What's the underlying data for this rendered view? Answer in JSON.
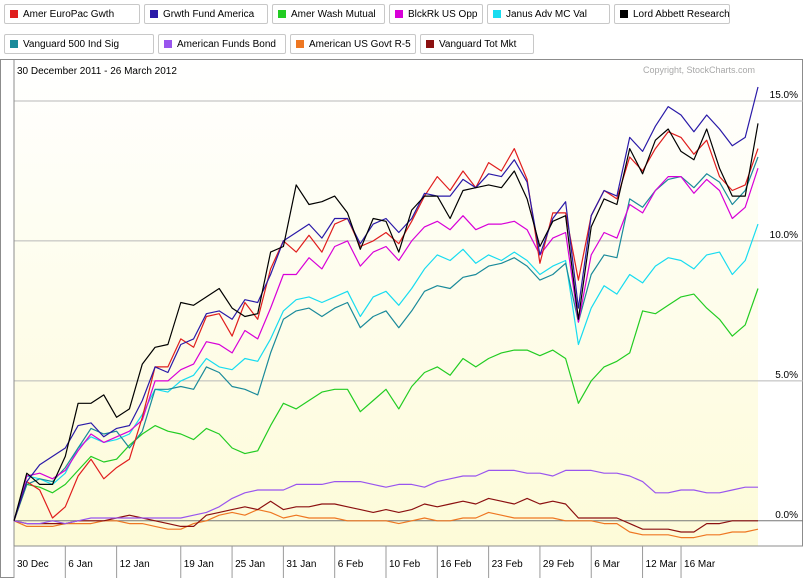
{
  "chart_data": {
    "type": "line",
    "date_range": "30 December 2011 - 26 March 2012",
    "copyright": "Copyright, StockCharts.com",
    "x_tick_labels": [
      "30 Dec",
      "6 Jan",
      "12 Jan",
      "19 Jan",
      "25 Jan",
      "31 Jan",
      "6 Feb",
      "10 Feb",
      "16 Feb",
      "23 Feb",
      "29 Feb",
      "6 Mar",
      "12 Mar",
      "16 Mar"
    ],
    "y_tick_labels": [
      "15.0%",
      "10.0%",
      "5.0%",
      "0.0%"
    ],
    "ylim": [
      -0.9,
      16.5
    ],
    "grid": true,
    "legend_placement": "top",
    "dates": [
      "2011-12-30",
      "2012-01-03",
      "2012-01-04",
      "2012-01-05",
      "2012-01-06",
      "2012-01-09",
      "2012-01-10",
      "2012-01-11",
      "2012-01-12",
      "2012-01-13",
      "2012-01-17",
      "2012-01-18",
      "2012-01-19",
      "2012-01-20",
      "2012-01-23",
      "2012-01-24",
      "2012-01-25",
      "2012-01-26",
      "2012-01-27",
      "2012-01-30",
      "2012-01-31",
      "2012-02-01",
      "2012-02-02",
      "2012-02-03",
      "2012-02-06",
      "2012-02-07",
      "2012-02-08",
      "2012-02-09",
      "2012-02-10",
      "2012-02-13",
      "2012-02-14",
      "2012-02-15",
      "2012-02-16",
      "2012-02-17",
      "2012-02-21",
      "2012-02-22",
      "2012-02-23",
      "2012-02-24",
      "2012-02-27",
      "2012-02-28",
      "2012-02-29",
      "2012-03-01",
      "2012-03-02",
      "2012-03-05",
      "2012-03-06",
      "2012-03-07",
      "2012-03-08",
      "2012-03-09",
      "2012-03-12",
      "2012-03-13",
      "2012-03-14",
      "2012-03-15",
      "2012-03-16",
      "2012-03-19",
      "2012-03-20",
      "2012-03-21",
      "2012-03-22",
      "2012-03-23",
      "2012-03-26"
    ],
    "series": [
      {
        "name": "Amer EuroPac Gwth",
        "color": "#e01e1e",
        "values": [
          0.0,
          1.4,
          1.1,
          0.1,
          0.5,
          1.6,
          2.2,
          1.5,
          1.9,
          2.2,
          3.7,
          5.5,
          5.5,
          6.5,
          6.2,
          7.3,
          7.4,
          6.6,
          7.8,
          7.2,
          9.0,
          10.0,
          9.6,
          10.2,
          9.6,
          10.6,
          10.8,
          9.8,
          10.0,
          10.3,
          9.9,
          10.7,
          11.6,
          12.3,
          11.8,
          12.5,
          11.9,
          12.8,
          12.5,
          13.3,
          12.2,
          9.2,
          11.0,
          11.0,
          8.6,
          10.9,
          11.8,
          11.5,
          13.0,
          12.5,
          13.3,
          13.9,
          13.7,
          13.1,
          13.6,
          12.3,
          11.8,
          12.0,
          13.3
        ]
      },
      {
        "name": "Grwth Fund America",
        "color": "#2a1aa8",
        "values": [
          0.0,
          1.4,
          2.0,
          2.3,
          2.6,
          3.4,
          3.5,
          3.0,
          3.3,
          3.4,
          4.3,
          5.5,
          5.3,
          6.3,
          6.5,
          7.4,
          7.5,
          7.2,
          7.9,
          7.8,
          8.8,
          10.0,
          10.3,
          10.6,
          10.1,
          10.8,
          10.8,
          9.9,
          10.6,
          10.8,
          10.3,
          10.8,
          11.7,
          11.6,
          11.6,
          12.2,
          11.9,
          12.4,
          12.3,
          12.9,
          12.1,
          9.5,
          10.8,
          11.4,
          7.6,
          10.9,
          11.8,
          11.6,
          13.7,
          13.2,
          14.1,
          14.8,
          14.5,
          13.9,
          14.5,
          14.0,
          13.4,
          13.7,
          15.5
        ]
      },
      {
        "name": "Amer Wash Mutual",
        "color": "#22cc22",
        "values": [
          0.0,
          1.3,
          1.2,
          1.0,
          1.3,
          1.8,
          2.3,
          2.1,
          2.2,
          2.7,
          3.1,
          3.4,
          3.2,
          3.1,
          2.9,
          3.3,
          3.1,
          2.6,
          2.4,
          2.5,
          3.4,
          4.2,
          4.0,
          4.3,
          4.6,
          4.7,
          4.7,
          3.9,
          4.3,
          4.7,
          4.0,
          4.8,
          5.3,
          5.5,
          5.2,
          5.8,
          5.5,
          5.8,
          6.0,
          6.1,
          6.1,
          5.9,
          6.1,
          5.8,
          4.2,
          5.0,
          5.5,
          5.7,
          6.0,
          7.5,
          7.4,
          7.7,
          8.0,
          8.1,
          7.6,
          7.2,
          6.6,
          7.0,
          8.3
        ]
      },
      {
        "name": "BlckRk US Opp",
        "color": "#d800d8",
        "values": [
          0.0,
          1.6,
          1.7,
          1.5,
          1.8,
          2.5,
          3.1,
          2.8,
          3.0,
          3.2,
          3.6,
          5.0,
          5.0,
          5.4,
          5.6,
          6.4,
          6.3,
          6.0,
          6.8,
          6.5,
          7.6,
          8.8,
          8.8,
          9.4,
          9.0,
          9.8,
          10.0,
          9.1,
          9.6,
          9.8,
          9.3,
          10.0,
          10.5,
          10.7,
          10.4,
          10.9,
          10.4,
          10.6,
          10.6,
          10.7,
          10.4,
          9.5,
          10.1,
          10.3,
          7.1,
          9.5,
          10.3,
          10.1,
          11.3,
          11.0,
          11.8,
          12.3,
          12.3,
          11.7,
          12.2,
          11.8,
          10.8,
          11.2,
          12.6
        ]
      },
      {
        "name": "Janus Adv MC Val",
        "color": "#18dcf0",
        "values": [
          0.0,
          1.6,
          1.5,
          1.3,
          1.7,
          2.6,
          3.0,
          2.8,
          2.9,
          3.1,
          3.8,
          4.7,
          4.6,
          5.0,
          5.2,
          5.8,
          5.5,
          5.4,
          5.8,
          5.7,
          6.5,
          7.5,
          7.9,
          8.0,
          7.8,
          8.0,
          8.2,
          7.3,
          8.0,
          8.2,
          7.7,
          8.3,
          9.0,
          9.5,
          9.3,
          9.7,
          9.2,
          9.5,
          9.3,
          9.6,
          9.3,
          8.8,
          9.1,
          9.3,
          6.3,
          7.6,
          8.4,
          8.1,
          8.8,
          8.5,
          9.1,
          9.4,
          9.3,
          9.0,
          9.5,
          9.6,
          8.8,
          9.3,
          10.6
        ]
      },
      {
        "name": "Lord Abbett Research",
        "color": "#000000",
        "values": [
          0.0,
          1.7,
          1.3,
          1.3,
          2.3,
          4.2,
          4.2,
          4.5,
          3.7,
          4.0,
          5.6,
          6.2,
          6.3,
          7.8,
          7.7,
          8.0,
          8.3,
          7.6,
          7.3,
          7.4,
          9.6,
          9.8,
          12.0,
          11.3,
          11.4,
          11.6,
          11.0,
          9.7,
          10.8,
          10.7,
          9.6,
          11.1,
          11.6,
          11.6,
          10.8,
          11.8,
          11.9,
          12.0,
          11.9,
          12.5,
          11.5,
          9.8,
          10.7,
          10.9,
          7.2,
          10.5,
          11.5,
          11.3,
          13.3,
          12.4,
          13.6,
          14.0,
          13.2,
          12.9,
          14.0,
          12.6,
          11.6,
          11.6,
          14.2
        ]
      },
      {
        "name": "Vanguard 500 Ind Sig",
        "color": "#1a8a9a",
        "values": [
          0.0,
          1.3,
          1.5,
          1.4,
          1.9,
          2.6,
          3.3,
          3.1,
          3.2,
          2.6,
          3.2,
          4.7,
          4.7,
          4.8,
          4.7,
          5.5,
          5.3,
          4.8,
          4.7,
          4.5,
          6.0,
          7.2,
          7.5,
          7.6,
          7.3,
          7.6,
          7.8,
          6.9,
          7.3,
          7.5,
          6.9,
          7.5,
          8.2,
          8.4,
          8.3,
          8.7,
          8.8,
          9.1,
          9.2,
          9.4,
          9.1,
          8.6,
          8.8,
          9.2,
          7.1,
          8.8,
          9.5,
          9.4,
          11.5,
          11.2,
          11.8,
          12.2,
          12.3,
          11.9,
          12.4,
          12.1,
          11.3,
          11.8,
          13.0
        ]
      },
      {
        "name": "American Funds Bond",
        "color": "#9955ee",
        "values": [
          0.0,
          -0.1,
          -0.1,
          0.0,
          -0.1,
          0.0,
          0.1,
          0.1,
          0.1,
          0.1,
          0.1,
          0.1,
          0.1,
          0.1,
          0.2,
          0.3,
          0.5,
          0.8,
          1.0,
          1.1,
          1.1,
          1.1,
          1.3,
          1.3,
          1.3,
          1.4,
          1.4,
          1.4,
          1.3,
          1.2,
          1.3,
          1.3,
          1.2,
          1.4,
          1.5,
          1.6,
          1.6,
          1.8,
          1.8,
          1.8,
          1.7,
          1.7,
          1.6,
          1.8,
          1.8,
          1.8,
          1.7,
          1.7,
          1.6,
          1.4,
          1.0,
          1.0,
          1.1,
          1.1,
          1.0,
          1.0,
          1.1,
          1.2,
          1.2
        ]
      },
      {
        "name": "American US Govt R-5",
        "color": "#ee7722",
        "values": [
          0.0,
          -0.2,
          -0.2,
          -0.2,
          -0.1,
          -0.1,
          -0.1,
          0.0,
          0.0,
          -0.1,
          -0.1,
          -0.2,
          -0.3,
          -0.3,
          -0.1,
          0.0,
          0.2,
          0.3,
          0.2,
          0.4,
          0.3,
          0.1,
          0.2,
          0.1,
          0.1,
          0.1,
          0.0,
          0.0,
          0.0,
          0.0,
          -0.1,
          0.0,
          0.1,
          0.0,
          0.0,
          0.1,
          0.1,
          0.3,
          0.2,
          0.1,
          0.1,
          0.1,
          0.1,
          0.0,
          0.0,
          0.0,
          -0.1,
          -0.1,
          -0.4,
          -0.5,
          -0.5,
          -0.5,
          -0.6,
          -0.6,
          -0.5,
          -0.5,
          -0.4,
          -0.4,
          -0.3
        ]
      },
      {
        "name": "Vanguard Tot Mkt",
        "color": "#8b1010",
        "values": [
          0.0,
          -0.1,
          -0.1,
          -0.1,
          -0.1,
          0.0,
          0.0,
          0.0,
          0.1,
          0.2,
          0.1,
          0.0,
          -0.1,
          -0.2,
          -0.2,
          0.2,
          0.3,
          0.4,
          0.5,
          0.4,
          0.7,
          0.4,
          0.5,
          0.5,
          0.6,
          0.6,
          0.5,
          0.4,
          0.3,
          0.4,
          0.3,
          0.4,
          0.6,
          0.5,
          0.6,
          0.7,
          0.6,
          0.8,
          0.7,
          0.6,
          0.8,
          0.6,
          0.7,
          0.6,
          0.1,
          0.1,
          0.1,
          0.1,
          -0.1,
          -0.3,
          -0.3,
          -0.3,
          -0.4,
          -0.4,
          -0.1,
          -0.1,
          0.0,
          0.0,
          0.0
        ]
      }
    ]
  }
}
